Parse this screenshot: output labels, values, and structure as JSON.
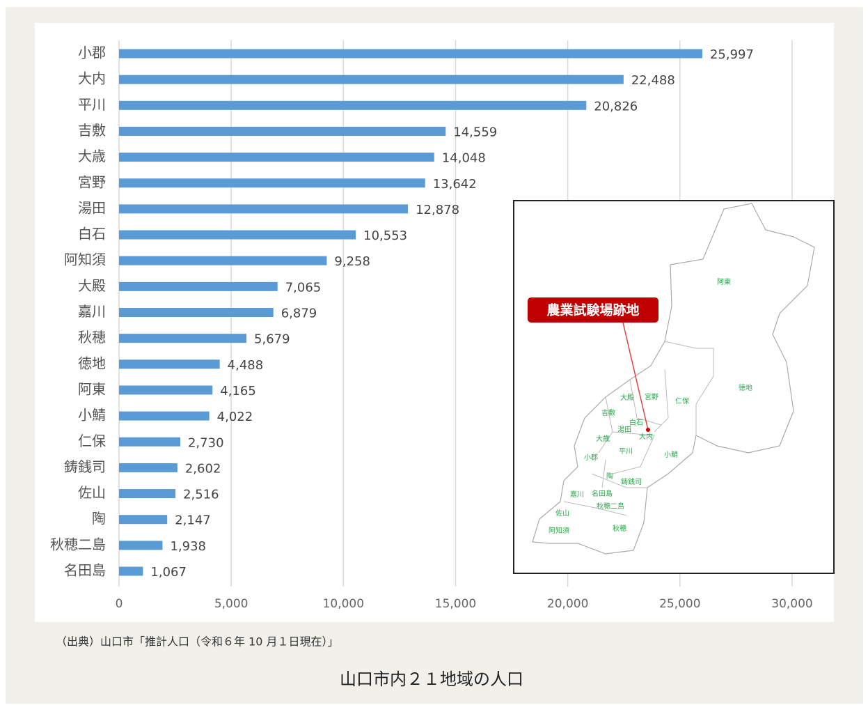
{
  "chart_data": {
    "type": "barh",
    "title": "山口市内２１地域の人口",
    "source": "（出典）山口市「推計人口（令和６年 10 月１日現在）」",
    "categories": [
      "小郡",
      "大内",
      "平川",
      "吉敷",
      "大歳",
      "宮野",
      "湯田",
      "白石",
      "阿知須",
      "大殿",
      "嘉川",
      "秋穂",
      "徳地",
      "阿東",
      "小鯖",
      "仁保",
      "鋳銭司",
      "佐山",
      "陶",
      "秋穂二島",
      "名田島"
    ],
    "values": [
      25997,
      22488,
      20826,
      14559,
      14048,
      13642,
      12878,
      10553,
      9258,
      7065,
      6879,
      5679,
      4488,
      4165,
      4022,
      2730,
      2602,
      2516,
      2147,
      1938,
      1067
    ],
    "value_labels": [
      "25,997",
      "22,488",
      "20,826",
      "14,559",
      "14,048",
      "13,642",
      "12,878",
      "10,553",
      "9,258",
      "7,065",
      "6,879",
      "5,679",
      "4,488",
      "4,165",
      "4,022",
      "2,730",
      "2,602",
      "2,516",
      "2,147",
      "1,938",
      "1,067"
    ],
    "color": "#5b9bd5",
    "xlim": [
      0,
      30000
    ],
    "xticks": [
      0,
      {
        "value": 5000,
        "label": "5,000"
      },
      {
        "value": 10000,
        "label": "10,000"
      },
      {
        "value": 15000,
        "label": "15,000"
      },
      {
        "value": 20000,
        "label": "20,000"
      },
      {
        "value": 25000,
        "label": "25,000"
      },
      {
        "value": 30000,
        "label": "30,000"
      }
    ],
    "grid": true,
    "map_callout": "農業試験場跡地",
    "map_labels": [
      "阿東",
      "徳地",
      "仁保",
      "宮野",
      "大殿",
      "吉敷",
      "白石",
      "湯田",
      "大内",
      "大歳",
      "平川",
      "小郡",
      "小鯖",
      "陶",
      "鋳銭司",
      "嘉川",
      "名田島",
      "秋穂二島",
      "佐山",
      "阿知須",
      "秋穂"
    ]
  }
}
